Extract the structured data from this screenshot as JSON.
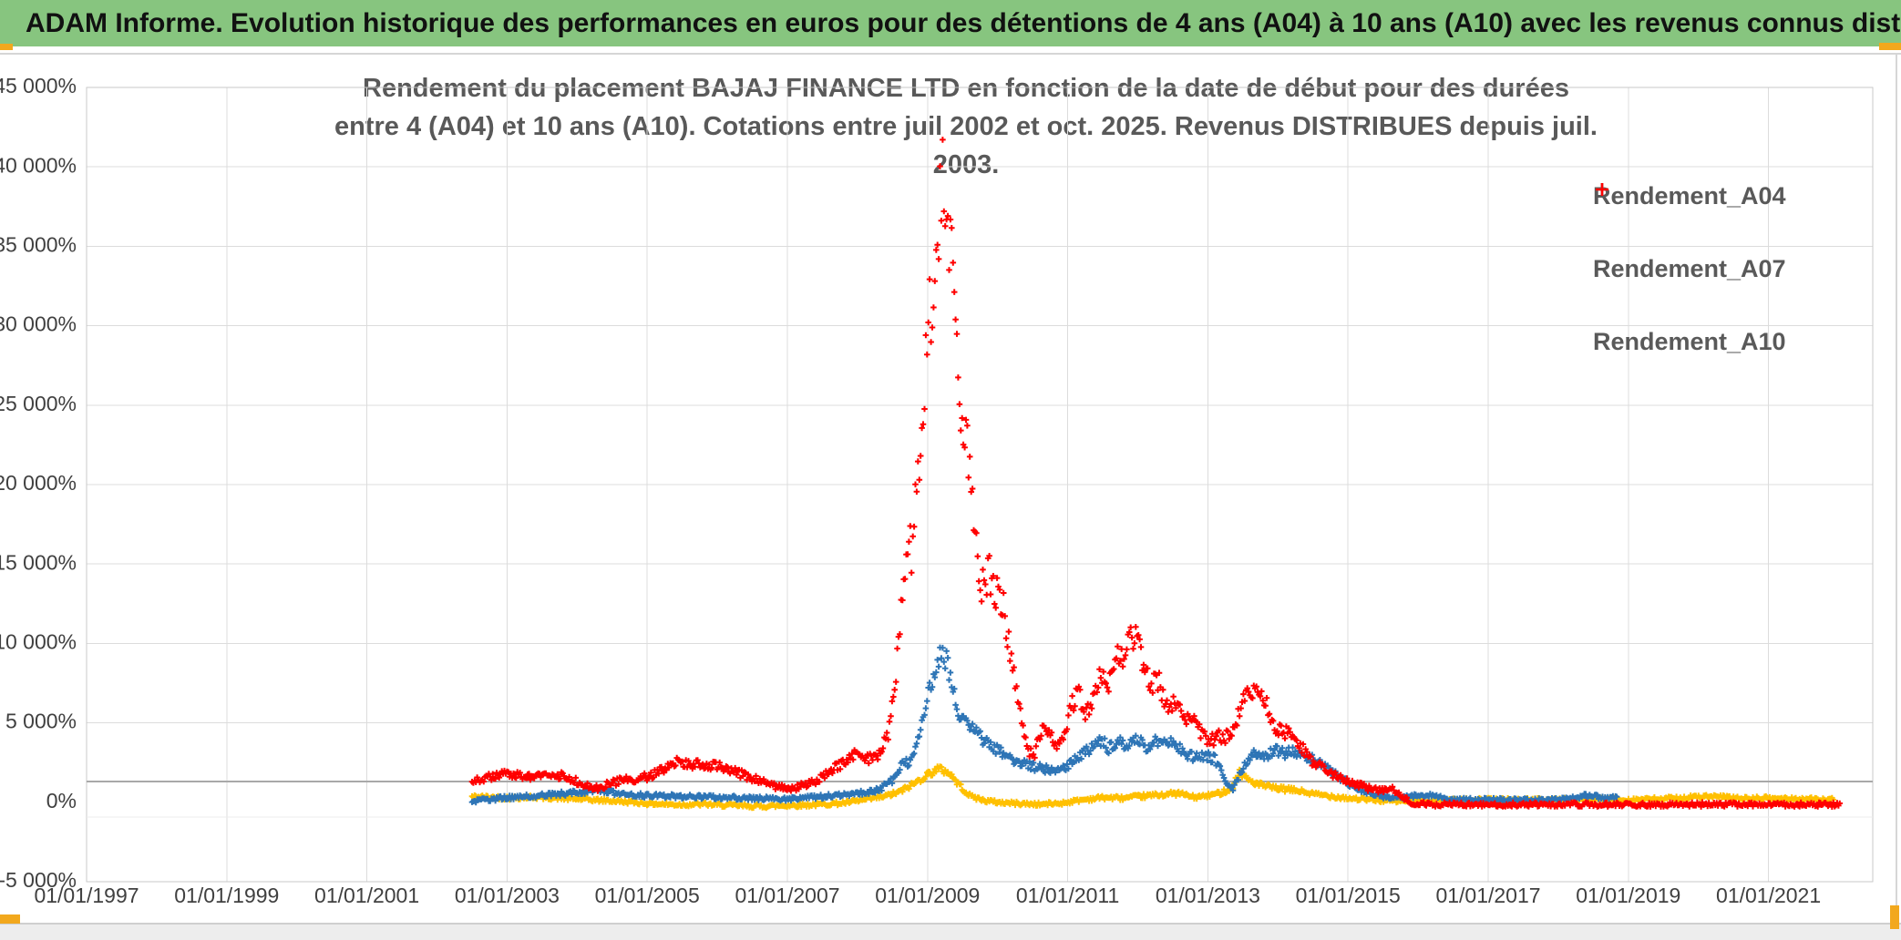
{
  "header": {
    "title": "ADAM Informe. Evolution historique des performances en euros pour des détentions de 4 ans (A04) à 10 ans (A10) avec les revenus connus distribués"
  },
  "colors": {
    "header_bg": "#87C57F",
    "title_text": "#595959",
    "axis_label": "#404040",
    "gridline": "#DCDCDC",
    "plot_border": "#C9C9C9",
    "zero_axis_line": "#A9A9A9",
    "faint_line": "#ECECEC",
    "accent_orange": "#F2A81D",
    "series_a04": "#FFC000",
    "series_a07": "#2E75B6",
    "series_a10": "#FF0000"
  },
  "chart_data": {
    "type": "scatter",
    "marker": "plus",
    "title_lines": [
      "Rendement du placement BAJAJ FINANCE LTD en fonction de la date de début pour des durées",
      "entre 4 (A04) et 10 ans (A10). Cotations entre juil 2002 et oct. 2025. Revenus DISTRIBUES depuis juil. 2003."
    ],
    "x_axis": {
      "tick_years": [
        1997,
        1999,
        2001,
        2003,
        2005,
        2007,
        2009,
        2011,
        2013,
        2015,
        2017,
        2019,
        2021
      ],
      "tick_labels": [
        "01/01/1997",
        "01/01/1999",
        "01/01/2001",
        "01/01/2003",
        "01/01/2005",
        "01/01/2007",
        "01/01/2009",
        "01/01/2011",
        "01/01/2013",
        "01/01/2015",
        "01/01/2017",
        "01/01/2019",
        "01/01/2021"
      ],
      "min_year": 1997.0,
      "max_year": 2022.5
    },
    "y_axis": {
      "tick_values": [
        45000,
        40000,
        35000,
        30000,
        25000,
        20000,
        15000,
        10000,
        5000,
        0,
        -5000
      ],
      "tick_labels": [
        "45 000%",
        "40 000%",
        "35 000%",
        "30 000%",
        "25 000%",
        "20 000%",
        "15 000%",
        "10 000%",
        "5 000%",
        "0%",
        "-5 000%"
      ],
      "min": -5000,
      "max": 45000,
      "grid": true
    },
    "legend": [
      {
        "label": "Rendement_A04",
        "color": "#FFC000"
      },
      {
        "label": "Rendement_A07",
        "color": "#2E75B6"
      },
      {
        "label": "Rendement_A10",
        "color": "#FF0000"
      }
    ],
    "series": [
      {
        "name": "Rendement_A04",
        "color": "#FFC000",
        "points": [
          [
            2002.5,
            350
          ],
          [
            2003.0,
            280
          ],
          [
            2003.4,
            330
          ],
          [
            2003.8,
            250
          ],
          [
            2004.2,
            160
          ],
          [
            2004.6,
            60
          ],
          [
            2005.0,
            -70
          ],
          [
            2005.4,
            -150
          ],
          [
            2005.8,
            -120
          ],
          [
            2006.2,
            -200
          ],
          [
            2006.6,
            -250
          ],
          [
            2007.0,
            -200
          ],
          [
            2007.4,
            -150
          ],
          [
            2007.8,
            -50
          ],
          [
            2008.1,
            150
          ],
          [
            2008.4,
            380
          ],
          [
            2008.6,
            650
          ],
          [
            2008.8,
            1150
          ],
          [
            2009.0,
            1750
          ],
          [
            2009.15,
            2100
          ],
          [
            2009.3,
            1900
          ],
          [
            2009.45,
            1100
          ],
          [
            2009.6,
            420
          ],
          [
            2009.8,
            120
          ],
          [
            2010.0,
            0
          ],
          [
            2010.3,
            -80
          ],
          [
            2010.6,
            -130
          ],
          [
            2010.9,
            -60
          ],
          [
            2011.2,
            150
          ],
          [
            2011.5,
            300
          ],
          [
            2011.8,
            260
          ],
          [
            2012.1,
            390
          ],
          [
            2012.4,
            510
          ],
          [
            2012.6,
            560
          ],
          [
            2012.8,
            310
          ],
          [
            2013.0,
            410
          ],
          [
            2013.2,
            620
          ],
          [
            2013.35,
            950
          ],
          [
            2013.45,
            1950
          ],
          [
            2013.55,
            1500
          ],
          [
            2013.7,
            1150
          ],
          [
            2013.9,
            920
          ],
          [
            2014.1,
            820
          ],
          [
            2014.3,
            720
          ],
          [
            2014.5,
            520
          ],
          [
            2014.7,
            420
          ],
          [
            2015.0,
            260
          ],
          [
            2015.3,
            160
          ],
          [
            2015.6,
            90
          ],
          [
            2016.0,
            90
          ],
          [
            2016.5,
            130
          ],
          [
            2017.0,
            160
          ],
          [
            2017.5,
            140
          ],
          [
            2018.0,
            160
          ],
          [
            2018.5,
            190
          ],
          [
            2019.0,
            160
          ],
          [
            2019.5,
            210
          ],
          [
            2019.8,
            290
          ],
          [
            2020.1,
            360
          ],
          [
            2020.4,
            310
          ],
          [
            2020.7,
            210
          ],
          [
            2021.0,
            260
          ],
          [
            2021.4,
            210
          ],
          [
            2021.94,
            160
          ]
        ]
      },
      {
        "name": "Rendement_A07",
        "color": "#2E75B6",
        "points": [
          [
            2002.5,
            60
          ],
          [
            2003.0,
            300
          ],
          [
            2003.5,
            420
          ],
          [
            2004.0,
            620
          ],
          [
            2004.3,
            820
          ],
          [
            2004.6,
            520
          ],
          [
            2005.0,
            420
          ],
          [
            2005.5,
            360
          ],
          [
            2006.0,
            320
          ],
          [
            2006.5,
            260
          ],
          [
            2007.0,
            210
          ],
          [
            2007.5,
            360
          ],
          [
            2008.0,
            560
          ],
          [
            2008.3,
            750
          ],
          [
            2008.5,
            1400
          ],
          [
            2008.65,
            2600
          ],
          [
            2008.75,
            2400
          ],
          [
            2008.85,
            3600
          ],
          [
            2008.95,
            5800
          ],
          [
            2009.05,
            7500
          ],
          [
            2009.13,
            8300
          ],
          [
            2009.2,
            9900
          ],
          [
            2009.28,
            8700
          ],
          [
            2009.37,
            7000
          ],
          [
            2009.45,
            5600
          ],
          [
            2009.55,
            5000
          ],
          [
            2009.65,
            4600
          ],
          [
            2009.75,
            4200
          ],
          [
            2009.85,
            3700
          ],
          [
            2009.93,
            3300
          ],
          [
            2010.0,
            3400
          ],
          [
            2010.12,
            3000
          ],
          [
            2010.3,
            2500
          ],
          [
            2010.5,
            2250
          ],
          [
            2010.7,
            2100
          ],
          [
            2010.9,
            1950
          ],
          [
            2011.1,
            2700
          ],
          [
            2011.3,
            3300
          ],
          [
            2011.48,
            3900
          ],
          [
            2011.58,
            3400
          ],
          [
            2011.73,
            3900
          ],
          [
            2011.85,
            3600
          ],
          [
            2012.0,
            4100
          ],
          [
            2012.1,
            3350
          ],
          [
            2012.28,
            3900
          ],
          [
            2012.4,
            3700
          ],
          [
            2012.5,
            3900
          ],
          [
            2012.65,
            3050
          ],
          [
            2012.8,
            2900
          ],
          [
            2012.95,
            2950
          ],
          [
            2013.1,
            2700
          ],
          [
            2013.25,
            1400
          ],
          [
            2013.35,
            750
          ],
          [
            2013.5,
            2250
          ],
          [
            2013.65,
            3300
          ],
          [
            2013.8,
            2800
          ],
          [
            2013.95,
            3300
          ],
          [
            2014.1,
            3100
          ],
          [
            2014.3,
            3200
          ],
          [
            2014.5,
            2700
          ],
          [
            2014.7,
            2150
          ],
          [
            2014.9,
            1500
          ],
          [
            2015.1,
            950
          ],
          [
            2015.3,
            600
          ],
          [
            2015.5,
            380
          ],
          [
            2015.7,
            280
          ],
          [
            2015.9,
            380
          ],
          [
            2016.1,
            480
          ],
          [
            2016.35,
            260
          ],
          [
            2016.6,
            170
          ],
          [
            2017.0,
            160
          ],
          [
            2017.5,
            130
          ],
          [
            2018.0,
            170
          ],
          [
            2018.4,
            420
          ],
          [
            2018.6,
            320
          ],
          [
            2018.85,
            260
          ]
        ]
      },
      {
        "name": "Rendement_A10",
        "color": "#FF0000",
        "points": [
          [
            2002.5,
            1350
          ],
          [
            2002.7,
            1550
          ],
          [
            2002.9,
            1700
          ],
          [
            2003.1,
            1800
          ],
          [
            2003.3,
            1650
          ],
          [
            2003.55,
            1600
          ],
          [
            2003.75,
            1700
          ],
          [
            2003.95,
            1400
          ],
          [
            2004.15,
            1000
          ],
          [
            2004.3,
            850
          ],
          [
            2004.45,
            1150
          ],
          [
            2004.65,
            1400
          ],
          [
            2004.85,
            1500
          ],
          [
            2005.05,
            1650
          ],
          [
            2005.25,
            2150
          ],
          [
            2005.45,
            2600
          ],
          [
            2005.65,
            2400
          ],
          [
            2005.85,
            2250
          ],
          [
            2006.05,
            2300
          ],
          [
            2006.25,
            1900
          ],
          [
            2006.45,
            1600
          ],
          [
            2006.65,
            1300
          ],
          [
            2006.85,
            1000
          ],
          [
            2007.05,
            800
          ],
          [
            2007.25,
            1100
          ],
          [
            2007.45,
            1450
          ],
          [
            2007.65,
            2050
          ],
          [
            2007.85,
            2700
          ],
          [
            2008.0,
            3100
          ],
          [
            2008.15,
            2700
          ],
          [
            2008.3,
            2900
          ],
          [
            2008.45,
            4500
          ],
          [
            2008.55,
            8000
          ],
          [
            2008.65,
            14000
          ],
          [
            2008.72,
            17000
          ],
          [
            2008.78,
            15500
          ],
          [
            2008.85,
            20000
          ],
          [
            2008.92,
            23500
          ],
          [
            2009.0,
            29000
          ],
          [
            2009.07,
            32500
          ],
          [
            2009.13,
            35000
          ],
          [
            2009.18,
            38000
          ],
          [
            2009.22,
            40500
          ],
          [
            2009.26,
            38500
          ],
          [
            2009.31,
            36000
          ],
          [
            2009.37,
            33000
          ],
          [
            2009.42,
            28000
          ],
          [
            2009.47,
            25000
          ],
          [
            2009.55,
            23000
          ],
          [
            2009.62,
            20000
          ],
          [
            2009.7,
            15800
          ],
          [
            2009.78,
            13500
          ],
          [
            2009.88,
            14500
          ],
          [
            2009.97,
            13200
          ],
          [
            2010.08,
            12500
          ],
          [
            2010.18,
            9500
          ],
          [
            2010.28,
            6500
          ],
          [
            2010.4,
            3800
          ],
          [
            2010.5,
            2800
          ],
          [
            2010.62,
            4300
          ],
          [
            2010.72,
            4700
          ],
          [
            2010.82,
            3400
          ],
          [
            2010.92,
            3800
          ],
          [
            2011.05,
            6000
          ],
          [
            2011.15,
            7100
          ],
          [
            2011.25,
            5400
          ],
          [
            2011.35,
            6100
          ],
          [
            2011.48,
            8200
          ],
          [
            2011.58,
            7000
          ],
          [
            2011.68,
            9800
          ],
          [
            2011.78,
            9000
          ],
          [
            2011.9,
            10400
          ],
          [
            2012.0,
            10200
          ],
          [
            2012.1,
            8300
          ],
          [
            2012.22,
            7400
          ],
          [
            2012.3,
            7700
          ],
          [
            2012.4,
            5900
          ],
          [
            2012.5,
            6400
          ],
          [
            2012.65,
            5500
          ],
          [
            2012.8,
            5000
          ],
          [
            2012.95,
            4200
          ],
          [
            2013.05,
            3900
          ],
          [
            2013.2,
            4200
          ],
          [
            2013.32,
            4000
          ],
          [
            2013.45,
            5600
          ],
          [
            2013.6,
            7300
          ],
          [
            2013.72,
            6800
          ],
          [
            2013.82,
            6300
          ],
          [
            2013.95,
            4800
          ],
          [
            2014.1,
            4400
          ],
          [
            2014.27,
            4000
          ],
          [
            2014.45,
            2700
          ],
          [
            2014.62,
            2300
          ],
          [
            2014.8,
            1700
          ],
          [
            2015.0,
            1300
          ],
          [
            2015.25,
            950
          ],
          [
            2015.45,
            700
          ],
          [
            2015.62,
            900
          ],
          [
            2015.78,
            350
          ],
          [
            2015.92,
            -100
          ],
          [
            2016.2,
            -140
          ],
          [
            2017.0,
            -140
          ],
          [
            2018.0,
            -140
          ],
          [
            2019.0,
            -140
          ],
          [
            2020.0,
            -140
          ],
          [
            2021.0,
            -140
          ],
          [
            2022.03,
            -140
          ]
        ]
      }
    ]
  }
}
